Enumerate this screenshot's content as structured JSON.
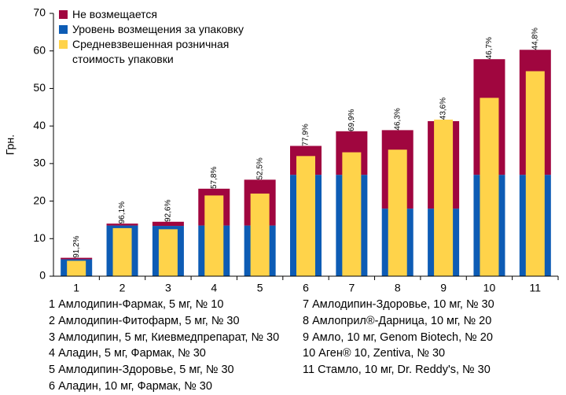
{
  "chart_data": {
    "type": "bar",
    "y_label": "Грн.",
    "categories": [
      "1",
      "2",
      "3",
      "4",
      "5",
      "6",
      "7",
      "8",
      "9",
      "10",
      "11"
    ],
    "series": [
      {
        "name": "Не возмещается",
        "color": "#a0063f",
        "role": "stack",
        "values": [
          0.4,
          0.5,
          1.1,
          9.8,
          12.2,
          7.7,
          11.6,
          20.9,
          23.3,
          30.8,
          33.3
        ]
      },
      {
        "name": "Уровень возмещения за упаковку",
        "color": "#0d5cb5",
        "role": "base",
        "values": [
          4.5,
          13.5,
          13.4,
          13.5,
          13.5,
          27,
          27,
          18,
          18,
          27,
          27
        ]
      },
      {
        "name": "Средневзвешенная розничная стоимость упаковки",
        "color": "#ffd34a",
        "role": "overlay",
        "values": [
          4.1,
          12.8,
          12.5,
          21.5,
          22,
          32,
          33,
          33.7,
          41.7,
          47.5,
          54.6
        ]
      }
    ],
    "bar_labels": [
      "91,2%",
      "96,1%",
      "92,6%",
      "57,8%",
      "52,5%",
      "77,9%",
      "69,9%",
      "46,3%",
      "43,6%",
      "46,7%",
      "44,8%"
    ],
    "ylim": [
      0,
      70
    ],
    "yticks": [
      0,
      10,
      20,
      30,
      40,
      50,
      60,
      70
    ],
    "notes": [
      "1 Амлодипин-Фармак, 5 мг, № 10",
      "2 Амлодипин-Фитофарм, 5 мг, № 30",
      "3 Амлодипин, 5 мг, Киевмедпрепарат, № 30",
      "4 Аладин, 5 мг, Фармак, № 30",
      "5 Амлодипин-Здоровье, 5 мг, № 30",
      "6 Аладин, 10 мг, Фармак, № 30",
      "7 Амлодипин-Здоровье, 10 мг, № 30",
      "8 Амлоприл®-Дарница, 10 мг, № 20",
      "9 Амло, 10 мг, Genom Biotech, № 20",
      "10 Аген® 10, Zentiva, № 30",
      "11 Стамло, 10 мг, Dr. Reddy's, № 30"
    ]
  }
}
